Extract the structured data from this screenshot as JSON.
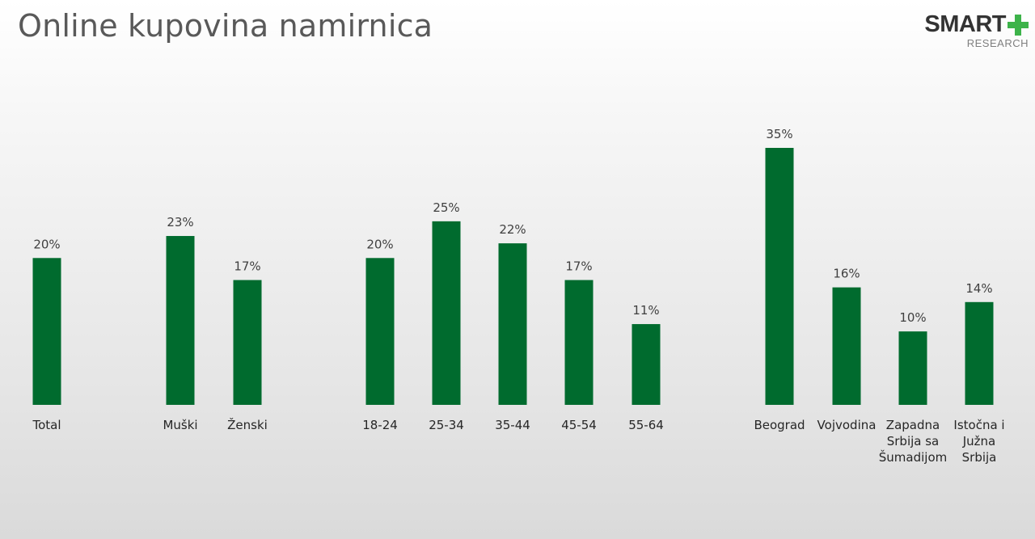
{
  "title": "Online kupovina namirnica",
  "logo": {
    "brand": "SMART",
    "sub": "RESEARCH"
  },
  "colors": {
    "bar": "#006b2e",
    "title": "#595959",
    "label": "#404040",
    "accent": "#3db34a"
  },
  "chart_data": {
    "type": "bar",
    "title": "Online kupovina namirnica",
    "categories": [
      "Total",
      "Muški",
      "Ženski",
      "18-24",
      "25-34",
      "35-44",
      "45-54",
      "55-64",
      "Beograd",
      "Vojvodina",
      "Zapadna Srbija sa Šumadijom",
      "Istočna i Južna Srbija"
    ],
    "values": [
      20,
      23,
      17,
      20,
      25,
      22,
      17,
      11,
      35,
      16,
      10,
      14
    ],
    "data_labels": [
      "20%",
      "23%",
      "17%",
      "20%",
      "25%",
      "22%",
      "17%",
      "11%",
      "35%",
      "16%",
      "10%",
      "14%"
    ],
    "ylim": [
      0,
      35
    ],
    "grid": false,
    "legend": "none"
  }
}
